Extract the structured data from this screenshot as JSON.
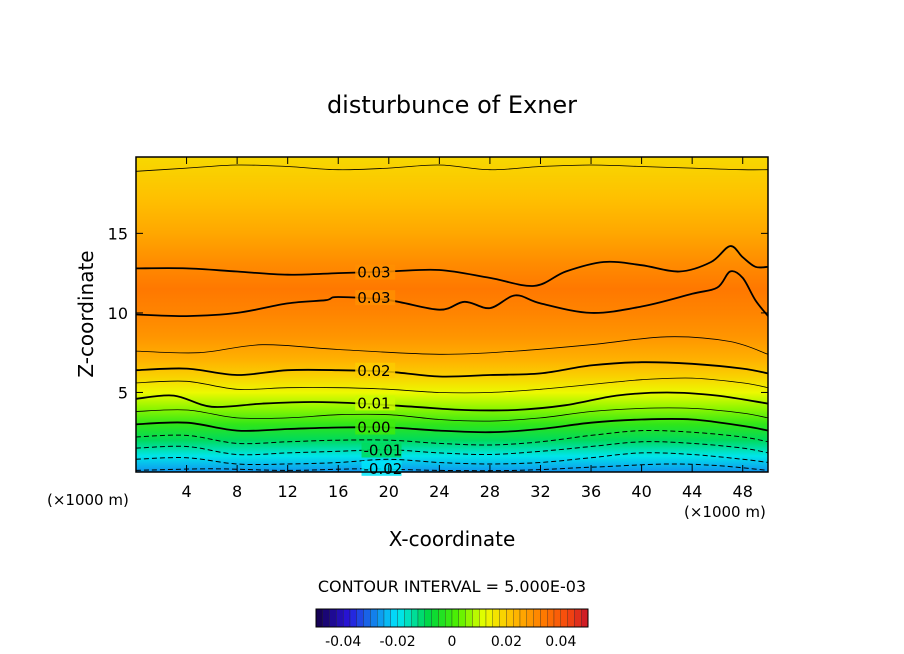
{
  "chart_data": {
    "type": "heatmap",
    "title": "disturbunce of Exner",
    "xlabel": "X-coordinate",
    "ylabel": "Z-coordinate",
    "x_unit_left": "(×1000 m)",
    "x_unit_right": "(×1000 m)",
    "xlim": [
      0,
      50
    ],
    "ylim": [
      0,
      19.8
    ],
    "x_ticks": [
      4,
      8,
      12,
      16,
      20,
      24,
      28,
      32,
      36,
      40,
      44,
      48
    ],
    "y_ticks": [
      5,
      10,
      15
    ],
    "contour_interval_text": "CONTOUR INTERVAL = 5.000E-03",
    "colorbar": {
      "range": [
        -0.05,
        0.05
      ],
      "ticks": [
        -0.04,
        -0.02,
        0,
        0.02,
        0.04
      ],
      "tick_labels": [
        "-0.04",
        "-0.02",
        "0",
        "0.02",
        "0.04"
      ]
    },
    "profile_levels": [
      {
        "z": 0.0,
        "value": -0.027
      },
      {
        "z": 1.0,
        "value": -0.019
      },
      {
        "z": 2.0,
        "value": -0.01
      },
      {
        "z": 3.0,
        "value": -0.002
      },
      {
        "z": 4.0,
        "value": 0.006
      },
      {
        "z": 5.0,
        "value": 0.013
      },
      {
        "z": 6.0,
        "value": 0.019
      },
      {
        "z": 7.0,
        "value": 0.024
      },
      {
        "z": 8.5,
        "value": 0.029
      },
      {
        "z": 10.0,
        "value": 0.032
      },
      {
        "z": 11.5,
        "value": 0.034
      },
      {
        "z": 13.0,
        "value": 0.031
      },
      {
        "z": 15.0,
        "value": 0.026
      },
      {
        "z": 17.0,
        "value": 0.022
      },
      {
        "z": 19.8,
        "value": 0.018
      }
    ],
    "contours": [
      {
        "level": "0.03",
        "label": "0.03",
        "label_x": 17.5,
        "style": "thick",
        "points": [
          [
            0,
            12.8
          ],
          [
            4,
            12.8
          ],
          [
            8,
            12.6
          ],
          [
            12,
            12.4
          ],
          [
            16,
            12.5
          ],
          [
            20,
            12.6
          ],
          [
            24,
            12.7
          ],
          [
            28,
            12.2
          ],
          [
            31.5,
            11.7
          ],
          [
            34,
            12.6
          ],
          [
            37,
            13.2
          ],
          [
            40,
            13.0
          ],
          [
            43,
            12.6
          ],
          [
            45.5,
            13.2
          ],
          [
            47,
            14.2
          ],
          [
            48,
            13.5
          ],
          [
            49,
            12.9
          ],
          [
            50,
            12.9
          ]
        ]
      },
      {
        "level": "0.03",
        "label": "0.03",
        "label_x": 17.5,
        "style": "thick",
        "points": [
          [
            0,
            9.9
          ],
          [
            4,
            9.8
          ],
          [
            8,
            10.0
          ],
          [
            12,
            10.6
          ],
          [
            15,
            10.8
          ],
          [
            16,
            11.0
          ],
          [
            20,
            10.8
          ],
          [
            24,
            10.2
          ],
          [
            26,
            10.7
          ],
          [
            28,
            10.3
          ],
          [
            30,
            11.1
          ],
          [
            32,
            10.6
          ],
          [
            36,
            10.0
          ],
          [
            40,
            10.4
          ],
          [
            44,
            11.2
          ],
          [
            46,
            11.6
          ],
          [
            47,
            12.6
          ],
          [
            48,
            12.2
          ],
          [
            49,
            10.8
          ],
          [
            50,
            9.8
          ]
        ]
      },
      {
        "level": "0.025",
        "label": "",
        "label_x": 0,
        "style": "thin",
        "points": [
          [
            0,
            7.6
          ],
          [
            5,
            7.5
          ],
          [
            10,
            8.0
          ],
          [
            16,
            7.7
          ],
          [
            24,
            7.4
          ],
          [
            30,
            7.6
          ],
          [
            36,
            8.0
          ],
          [
            42,
            8.5
          ],
          [
            47,
            8.2
          ],
          [
            50,
            7.4
          ]
        ]
      },
      {
        "level": "0.02",
        "label": "0.02",
        "label_x": 17.5,
        "style": "thick",
        "points": [
          [
            0,
            6.4
          ],
          [
            4,
            6.5
          ],
          [
            8,
            6.1
          ],
          [
            12,
            6.4
          ],
          [
            16,
            6.4
          ],
          [
            20,
            6.3
          ],
          [
            24,
            6.0
          ],
          [
            28,
            6.1
          ],
          [
            32,
            6.2
          ],
          [
            36,
            6.7
          ],
          [
            40,
            6.9
          ],
          [
            44,
            6.8
          ],
          [
            48,
            6.5
          ],
          [
            50,
            6.2
          ]
        ]
      },
      {
        "level": "0.015",
        "label": "",
        "label_x": 0,
        "style": "thin",
        "points": [
          [
            0,
            5.6
          ],
          [
            4,
            5.7
          ],
          [
            8,
            5.2
          ],
          [
            12,
            5.3
          ],
          [
            16,
            5.3
          ],
          [
            20,
            5.2
          ],
          [
            24,
            5.0
          ],
          [
            28,
            5.0
          ],
          [
            32,
            5.2
          ],
          [
            36,
            5.5
          ],
          [
            40,
            5.8
          ],
          [
            44,
            5.9
          ],
          [
            48,
            5.6
          ],
          [
            50,
            5.3
          ]
        ]
      },
      {
        "level": "0.01",
        "label": "0.01",
        "label_x": 17.5,
        "style": "thick",
        "points": [
          [
            0,
            4.6
          ],
          [
            3,
            4.8
          ],
          [
            6,
            4.1
          ],
          [
            10,
            4.3
          ],
          [
            14,
            4.4
          ],
          [
            18,
            4.3
          ],
          [
            22,
            4.1
          ],
          [
            26,
            3.9
          ],
          [
            30,
            3.9
          ],
          [
            34,
            4.2
          ],
          [
            38,
            4.8
          ],
          [
            42,
            5.0
          ],
          [
            46,
            4.8
          ],
          [
            50,
            4.3
          ]
        ]
      },
      {
        "level": "0.005",
        "label": "",
        "label_x": 0,
        "style": "thin",
        "points": [
          [
            0,
            3.8
          ],
          [
            4,
            3.9
          ],
          [
            8,
            3.4
          ],
          [
            12,
            3.4
          ],
          [
            16,
            3.6
          ],
          [
            20,
            3.6
          ],
          [
            24,
            3.3
          ],
          [
            28,
            3.2
          ],
          [
            32,
            3.4
          ],
          [
            36,
            3.8
          ],
          [
            40,
            4.0
          ],
          [
            44,
            4.0
          ],
          [
            48,
            3.7
          ],
          [
            50,
            3.4
          ]
        ]
      },
      {
        "level": "0.00",
        "label": "0.00",
        "label_x": 17.5,
        "style": "thick",
        "points": [
          [
            0,
            3.0
          ],
          [
            4,
            3.1
          ],
          [
            8,
            2.6
          ],
          [
            12,
            2.7
          ],
          [
            16,
            2.8
          ],
          [
            20,
            2.8
          ],
          [
            24,
            2.6
          ],
          [
            28,
            2.5
          ],
          [
            32,
            2.7
          ],
          [
            36,
            3.1
          ],
          [
            40,
            3.3
          ],
          [
            44,
            3.3
          ],
          [
            48,
            2.9
          ],
          [
            50,
            2.6
          ]
        ]
      },
      {
        "level": "-0.005",
        "label": "",
        "label_x": 0,
        "style": "dashed",
        "points": [
          [
            0,
            2.2
          ],
          [
            4,
            2.3
          ],
          [
            8,
            1.8
          ],
          [
            12,
            1.9
          ],
          [
            16,
            2.0
          ],
          [
            20,
            2.0
          ],
          [
            24,
            1.8
          ],
          [
            28,
            1.7
          ],
          [
            32,
            1.9
          ],
          [
            36,
            2.3
          ],
          [
            40,
            2.6
          ],
          [
            44,
            2.5
          ],
          [
            48,
            2.2
          ],
          [
            50,
            1.9
          ]
        ]
      },
      {
        "level": "-0.01",
        "label": "-0.01",
        "label_x": 18,
        "style": "dashed",
        "points": [
          [
            0,
            1.5
          ],
          [
            4,
            1.6
          ],
          [
            8,
            1.1
          ],
          [
            12,
            1.2
          ],
          [
            16,
            1.3
          ],
          [
            20,
            1.4
          ],
          [
            24,
            1.2
          ],
          [
            28,
            1.1
          ],
          [
            32,
            1.3
          ],
          [
            36,
            1.6
          ],
          [
            40,
            1.9
          ],
          [
            44,
            1.8
          ],
          [
            48,
            1.5
          ],
          [
            50,
            1.2
          ]
        ]
      },
      {
        "level": "-0.015",
        "label": "",
        "label_x": 0,
        "style": "dashed",
        "points": [
          [
            0,
            0.8
          ],
          [
            4,
            0.9
          ],
          [
            8,
            0.5
          ],
          [
            12,
            0.5
          ],
          [
            16,
            0.6
          ],
          [
            20,
            0.8
          ],
          [
            24,
            0.6
          ],
          [
            28,
            0.5
          ],
          [
            32,
            0.6
          ],
          [
            36,
            0.9
          ],
          [
            40,
            1.2
          ],
          [
            44,
            1.1
          ],
          [
            48,
            0.8
          ],
          [
            50,
            0.6
          ]
        ]
      },
      {
        "level": "-0.02",
        "label": "-0.02",
        "label_x": 18,
        "style": "dashed",
        "points": [
          [
            0,
            0.1
          ],
          [
            6,
            0.2
          ],
          [
            12,
            0.1
          ],
          [
            18,
            0.2
          ],
          [
            24,
            0.1
          ],
          [
            30,
            0.1
          ],
          [
            36,
            0.3
          ],
          [
            42,
            0.5
          ],
          [
            46,
            0.4
          ],
          [
            50,
            0.1
          ]
        ]
      },
      {
        "level": "0.02",
        "label": "",
        "label_x": 0,
        "style": "thin",
        "points": [
          [
            0,
            18.9
          ],
          [
            4,
            19.1
          ],
          [
            8,
            19.3
          ],
          [
            12,
            19.2
          ],
          [
            16,
            19.0
          ],
          [
            20,
            19.1
          ],
          [
            24,
            19.3
          ],
          [
            28,
            19.0
          ],
          [
            32,
            19.2
          ],
          [
            36,
            19.3
          ],
          [
            40,
            19.2
          ],
          [
            44,
            19.1
          ],
          [
            48,
            19.0
          ],
          [
            50,
            19.0
          ]
        ]
      }
    ]
  }
}
